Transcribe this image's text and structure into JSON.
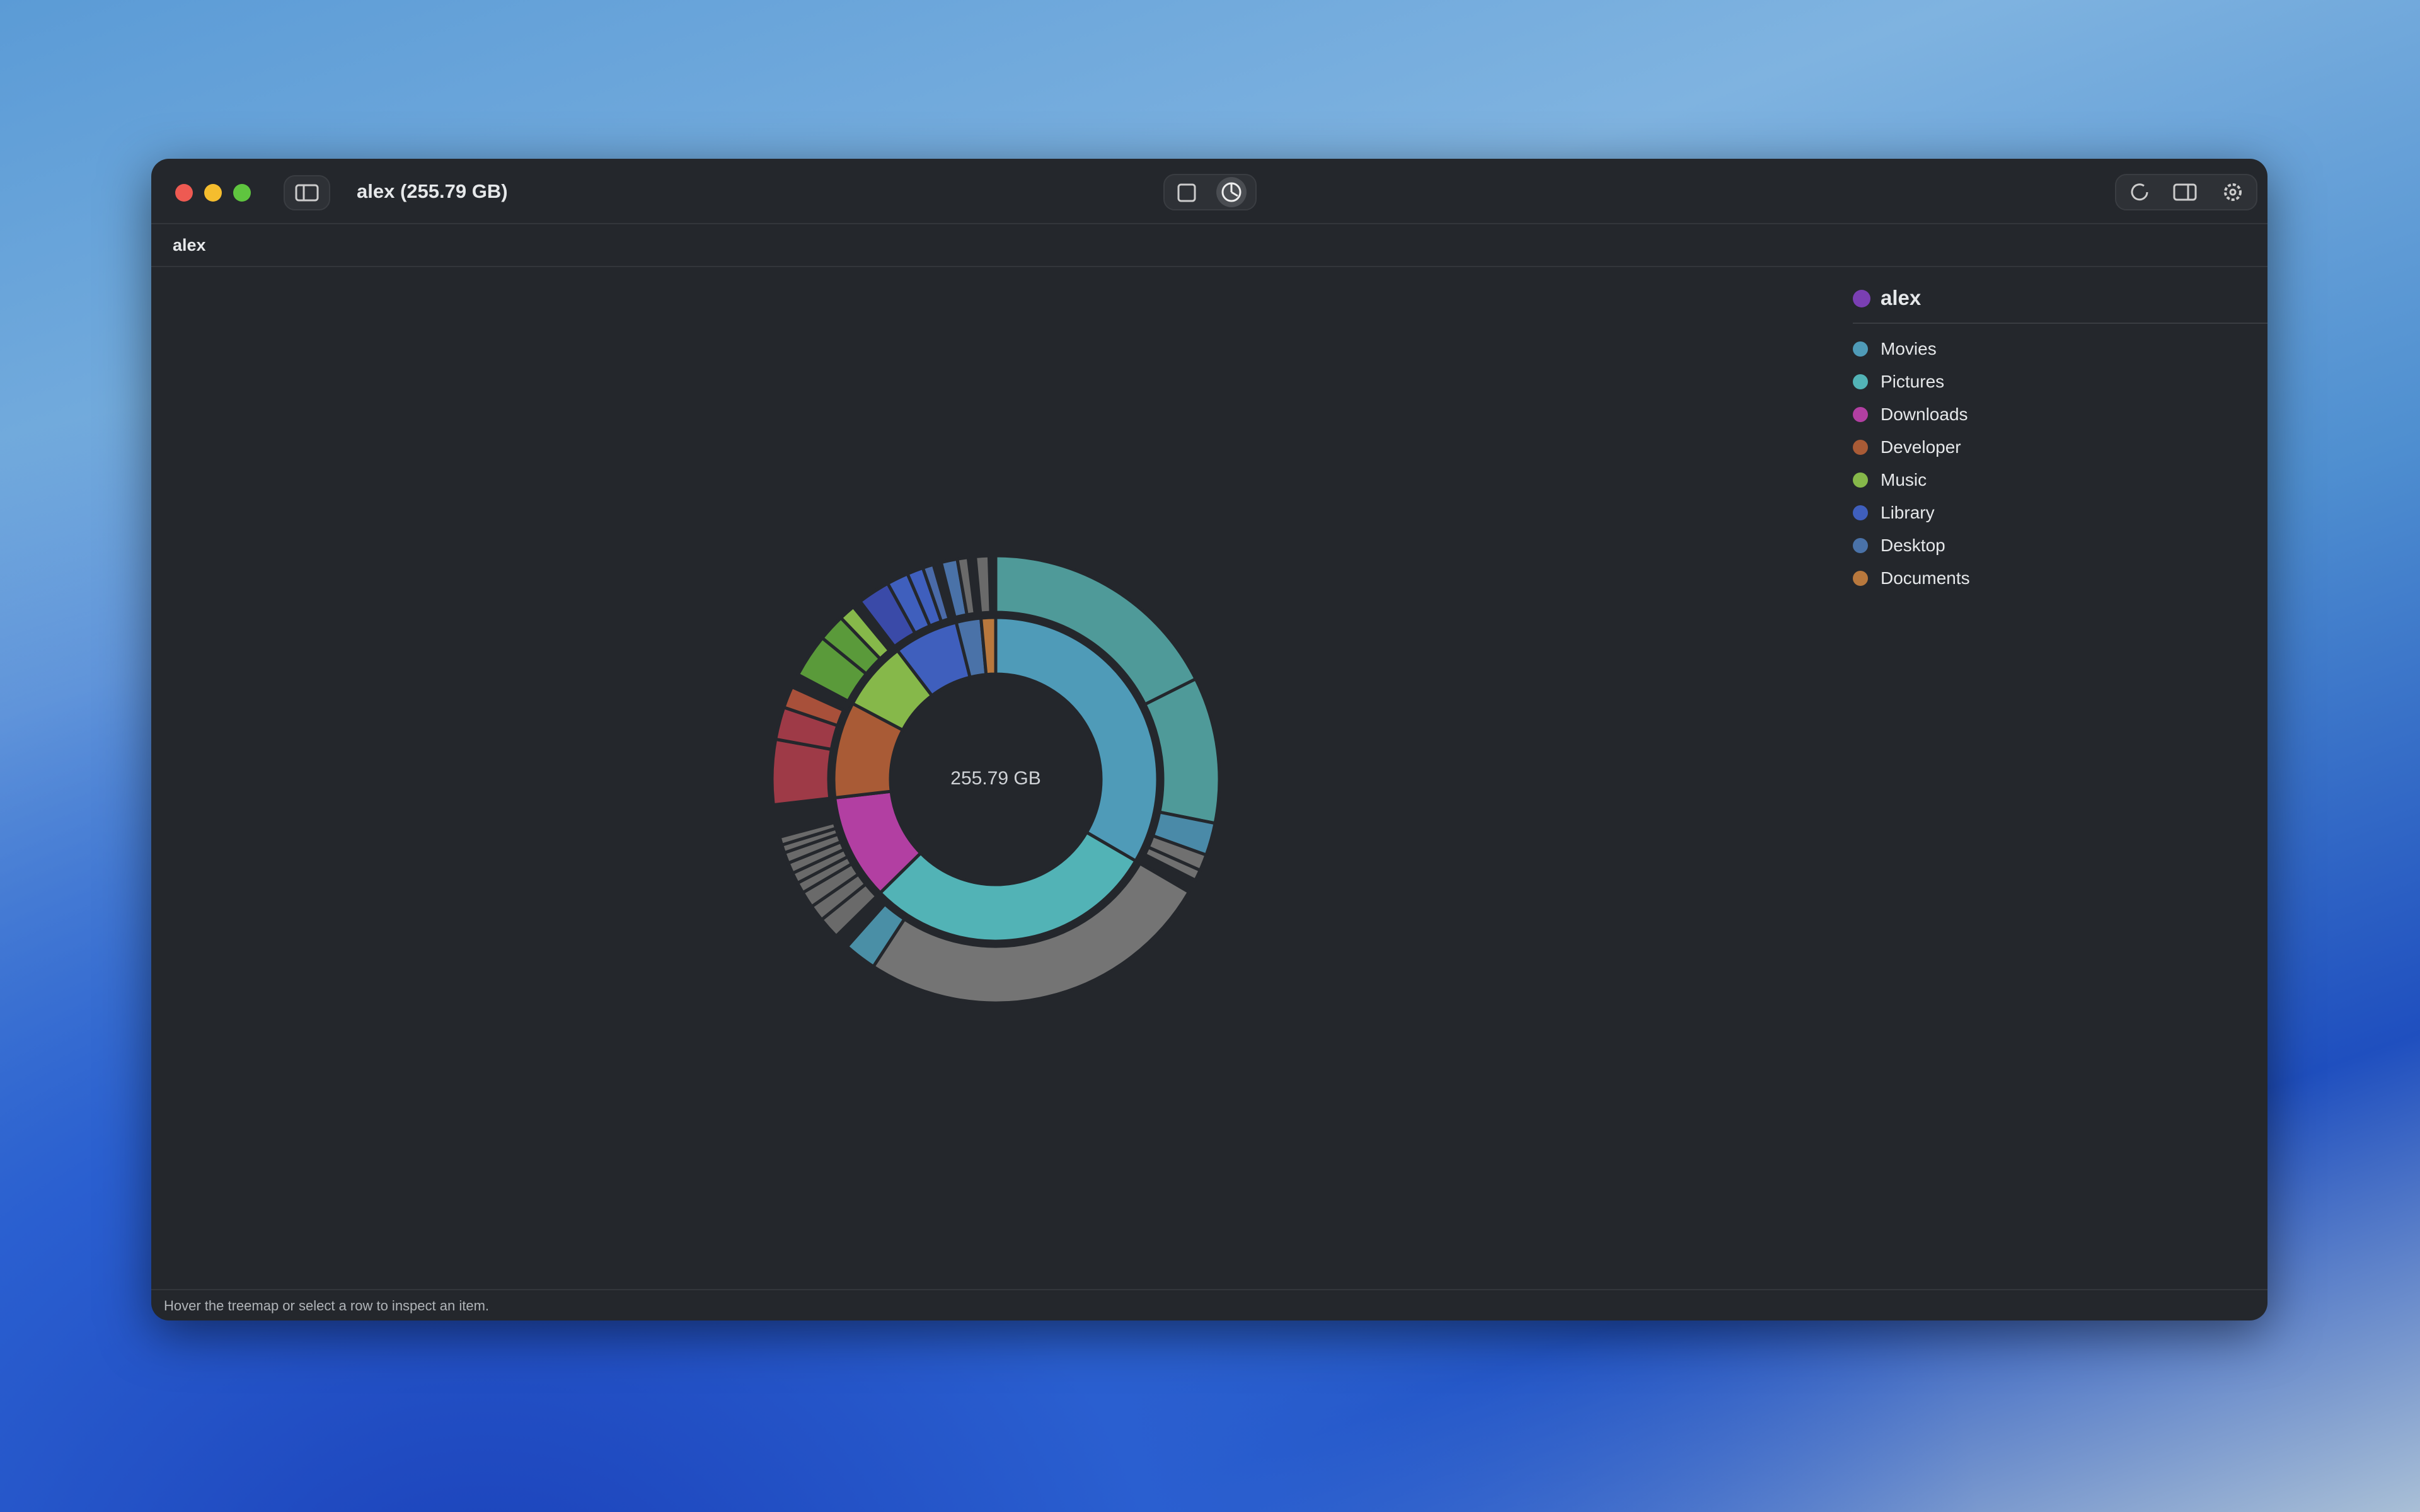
{
  "window": {
    "title": "alex (255.79 GB)",
    "breadcrumb": "alex",
    "status": "Hover the treemap or select a row to inspect an item."
  },
  "chart_data": {
    "type": "sunburst",
    "center_label": "255.79 GB",
    "root": {
      "name": "alex",
      "value": 255.79,
      "value_label": "255.79 GB",
      "color": "#7a3fb3"
    },
    "categories": [
      "Movies",
      "Pictures",
      "Downloads",
      "Developer",
      "Music",
      "Library",
      "Desktop",
      "Documents"
    ],
    "values": [
      85.45,
      74.76,
      26.97,
      24.5,
      17.6,
      16.47,
      6.32,
      3.72
    ],
    "value_labels": [
      "85.45 GB",
      "74.76 GB",
      "26.97 GB",
      "24.5 GB",
      "17.6 GB",
      "16.47 GB",
      "6.32 GB",
      "3.72 GB"
    ],
    "colors": [
      "#4f9bb8",
      "#52b3b6",
      "#b23fa2",
      "#a95b36",
      "#86b84a",
      "#3f5fbd",
      "#4a72a8",
      "#b8783d"
    ],
    "children": [
      {
        "values": [
          45,
          27,
          6,
          3,
          2
        ],
        "colors": [
          "#4f9a99",
          "#4f9a99",
          "#4a8aa8",
          "#707070",
          "#707070"
        ]
      },
      {
        "values": [
          66,
          6
        ],
        "colors": [
          "#747474",
          "#4a8fa6"
        ]
      },
      {
        "values": [
          4,
          3,
          3,
          2,
          2,
          2,
          2,
          1.5,
          1.5
        ],
        "colors": [
          "#6a6a6a",
          "#6a6a6a",
          "#6a6a6a",
          "#6a6a6a",
          "#6a6a6a",
          "#6a6a6a",
          "#6a6a6a",
          "#6a6a6a",
          "#6a6a6a"
        ]
      },
      {
        "values": [
          12,
          6,
          4
        ],
        "colors": [
          "#9e3a47",
          "#9e3a47",
          "#a8503a"
        ]
      },
      {
        "values": [
          8,
          5,
          3
        ],
        "colors": [
          "#5a9a3a",
          "#5a9a3a",
          "#86b84a"
        ]
      },
      {
        "values": [
          6,
          4,
          3,
          2
        ],
        "colors": [
          "#3a4aa8",
          "#3f5fbd",
          "#3f5fbd",
          "#4a6aa8"
        ]
      },
      {
        "values": [
          3,
          2
        ],
        "colors": [
          "#4a72a8",
          "#6a6a6a"
        ]
      },
      {
        "values": [
          2.5
        ],
        "colors": [
          "#6a6a6a"
        ]
      }
    ]
  }
}
